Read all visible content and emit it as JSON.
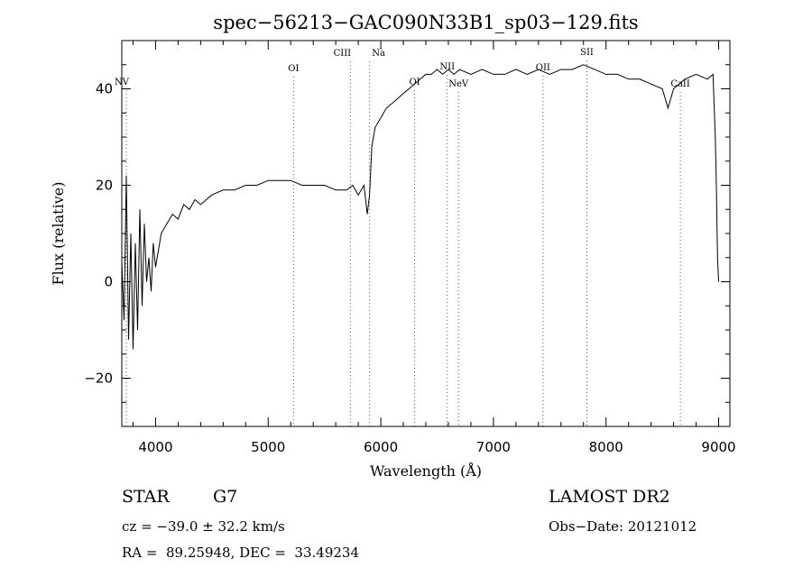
{
  "chart_data": {
    "type": "line",
    "title": "spec−56213−GAC090N33B1_sp03−129.fits",
    "xlabel": "Wavelength (Å)",
    "ylabel": "Flux (relative)",
    "xlim": [
      3700,
      9100
    ],
    "ylim": [
      -30,
      50
    ],
    "x_ticks": [
      4000,
      5000,
      6000,
      7000,
      8000,
      9000
    ],
    "y_ticks": [
      -20,
      0,
      20,
      40
    ],
    "y_tick_labels": [
      "−20",
      "0",
      "20",
      "40"
    ],
    "grid": false,
    "series": [
      {
        "x": [
          3700,
          3720,
          3740,
          3760,
          3780,
          3800,
          3820,
          3840,
          3860,
          3880,
          3900,
          3920,
          3940,
          3960,
          3980,
          4000,
          4050,
          4100,
          4150,
          4200,
          4250,
          4300,
          4350,
          4400,
          4450,
          4500,
          4600,
          4700,
          4800,
          4900,
          5000,
          5100,
          5200,
          5300,
          5400,
          5500,
          5600,
          5700,
          5750,
          5800,
          5850,
          5880,
          5900,
          5920,
          5950,
          6000,
          6050,
          6100,
          6150,
          6200,
          6250,
          6300,
          6350,
          6400,
          6450,
          6500,
          6550,
          6600,
          6650,
          6700,
          6800,
          6900,
          7000,
          7100,
          7200,
          7300,
          7400,
          7500,
          7600,
          7700,
          7800,
          7900,
          8000,
          8100,
          8200,
          8300,
          8400,
          8500,
          8550,
          8600,
          8650,
          8700,
          8800,
          8900,
          8950,
          8970,
          8980,
          8990,
          9000
        ],
        "y": [
          4,
          -8,
          22,
          -12,
          10,
          -14,
          8,
          -10,
          15,
          -5,
          12,
          0,
          5,
          -2,
          8,
          3,
          10,
          12,
          14,
          13,
          16,
          15,
          17,
          16,
          17,
          18,
          19,
          19,
          20,
          20,
          21,
          21,
          21,
          20,
          20,
          20,
          19,
          19,
          20,
          18,
          20,
          14,
          18,
          28,
          32,
          34,
          36,
          37,
          38,
          39,
          40,
          41,
          42,
          43,
          43,
          44,
          43,
          44,
          43,
          44,
          43,
          44,
          43,
          43,
          44,
          43,
          44,
          43,
          44,
          44,
          45,
          44,
          43,
          43,
          42,
          42,
          41,
          40,
          36,
          40,
          41,
          42,
          43,
          42,
          43,
          30,
          20,
          5,
          0
        ]
      }
    ],
    "line_markers": [
      {
        "label": "NV",
        "wavelength": 3740
      },
      {
        "label": "OI",
        "wavelength": 5225
      },
      {
        "label": "CIII",
        "wavelength": 5730
      },
      {
        "label": "Na",
        "wavelength": 5900
      },
      {
        "label": "OI",
        "wavelength": 6300
      },
      {
        "label": "NII",
        "wavelength": 6590
      },
      {
        "label": "NeV",
        "wavelength": 6690
      },
      {
        "label": "OII",
        "wavelength": 7440
      },
      {
        "label": "SII",
        "wavelength": 7830
      },
      {
        "label": "CaII",
        "wavelength": 8660
      }
    ]
  },
  "info": {
    "object_class": "STAR",
    "subclass": "G7",
    "survey": "LAMOST DR2",
    "redshift": "cz = −39.0 ± 32.2 km/s",
    "obs_date": "Obs−Date: 20121012",
    "coords": "RA =  89.25948, DEC =  33.49234"
  }
}
